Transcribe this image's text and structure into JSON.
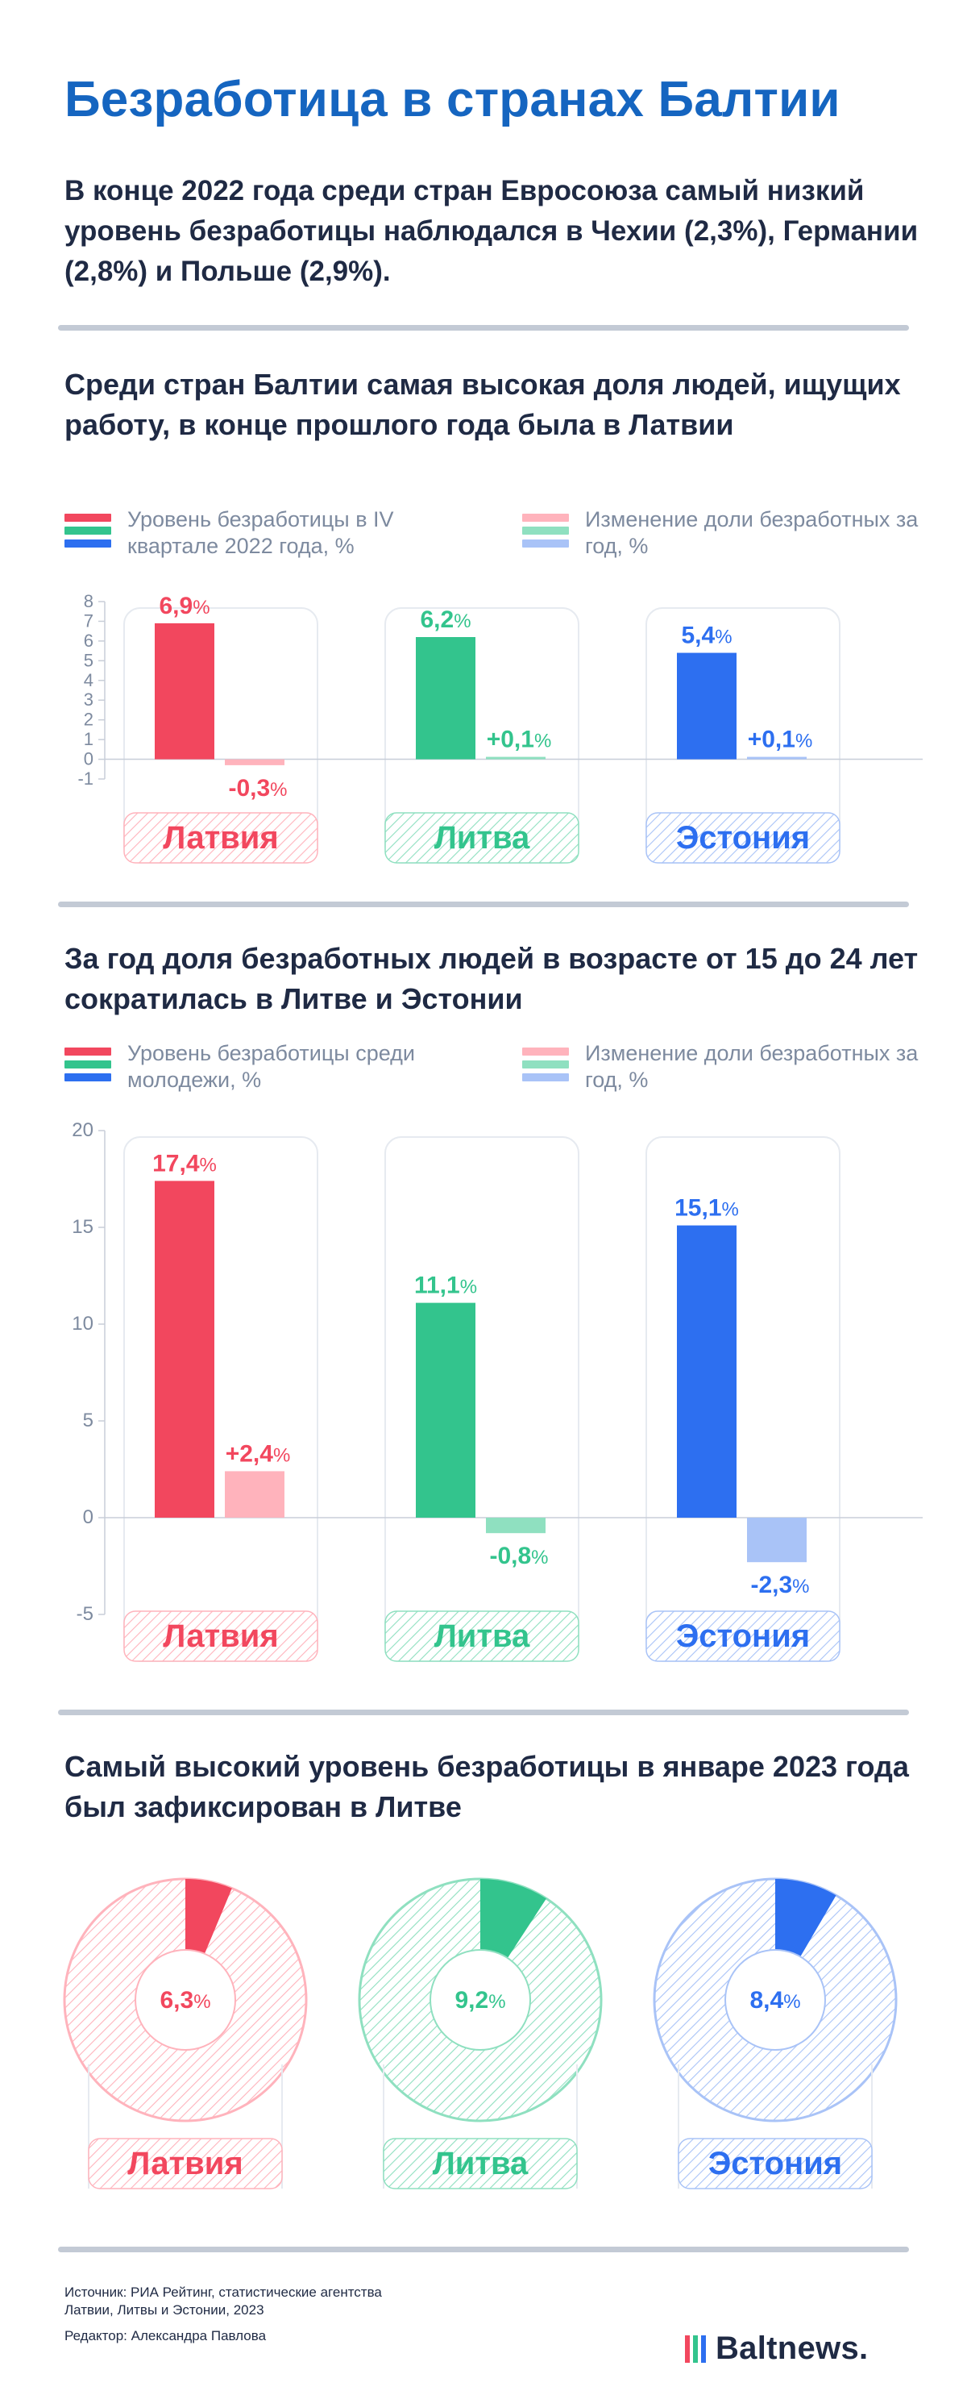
{
  "title": "Безработица в странах Балтии",
  "intro": "В конце 2022 года среди стран Евросоюза самый низкий уровень безработицы наблюдался в Чехии (2,3%), Германии (2,8%) и Польше (2,9%).",
  "colors": {
    "latvia": "#f2475e",
    "latvia_light": "#ffb3bc",
    "lithuania": "#33c48d",
    "lithuania_light": "#8fe0c0",
    "estonia": "#2d6ff0",
    "estonia_light": "#a9c3f7",
    "title_blue": "#1565c0"
  },
  "section1": {
    "title": "Среди стран Балтии самая высокая доля людей, ищущих работу, в конце прошлого года была в Латвии",
    "legend_left": "Уровень безработицы в IV квартале 2022 года, %",
    "legend_right": "Изменение доли безработных за год, %"
  },
  "section2": {
    "title": "За год доля безработных людей в возрасте от 15 до 24 лет сократилась в Литве и Эстонии",
    "legend_left": "Уровень безработицы среди молодежи, %",
    "legend_right": "Изменение доли безработных за год, %"
  },
  "section3": {
    "title": "Самый высокий уровень безработицы в январе 2023 года был зафиксирован в Литве"
  },
  "footer": {
    "source": "Источник: РИА Рейтинг, статистические агентства Латвии, Литвы и Эстонии, 2023",
    "editor": "Редактор: Александра Павлова",
    "logo": "Baltnews."
  },
  "chart_data": [
    {
      "type": "bar",
      "categories": [
        "Латвия",
        "Литва",
        "Эстония"
      ],
      "series": [
        {
          "name": "Уровень безработицы в IV квартале 2022 года, %",
          "values": [
            6.9,
            6.2,
            5.4
          ],
          "labels": [
            "6,9",
            "6,2",
            "5,4"
          ]
        },
        {
          "name": "Изменение доли безработных за год, %",
          "values": [
            -0.3,
            0.1,
            0.1
          ],
          "labels": [
            "-0,3",
            "+0,1",
            "+0,1"
          ]
        }
      ],
      "yticks": [
        "8",
        "7",
        "6",
        "5",
        "4",
        "3",
        "2",
        "1",
        "0",
        "-1"
      ],
      "ylim": [
        -1,
        8
      ]
    },
    {
      "type": "bar",
      "categories": [
        "Латвия",
        "Литва",
        "Эстония"
      ],
      "series": [
        {
          "name": "Уровень безработицы среди молодежи, %",
          "values": [
            17.4,
            11.1,
            15.1
          ],
          "labels": [
            "17,4",
            "11,1",
            "15,1"
          ]
        },
        {
          "name": "Изменение доли безработных за год, %",
          "values": [
            2.4,
            -0.8,
            -2.3
          ],
          "labels": [
            "+2,4",
            "-0,8",
            "-2,3"
          ]
        }
      ],
      "yticks": [
        "20",
        "15",
        "10",
        "5",
        "0",
        "-5"
      ],
      "ylim": [
        -5,
        20
      ]
    },
    {
      "type": "pie",
      "categories": [
        "Латвия",
        "Литва",
        "Эстония"
      ],
      "values": [
        6.3,
        9.2,
        8.4
      ],
      "labels": [
        "6,3",
        "9,2",
        "8,4"
      ]
    }
  ]
}
